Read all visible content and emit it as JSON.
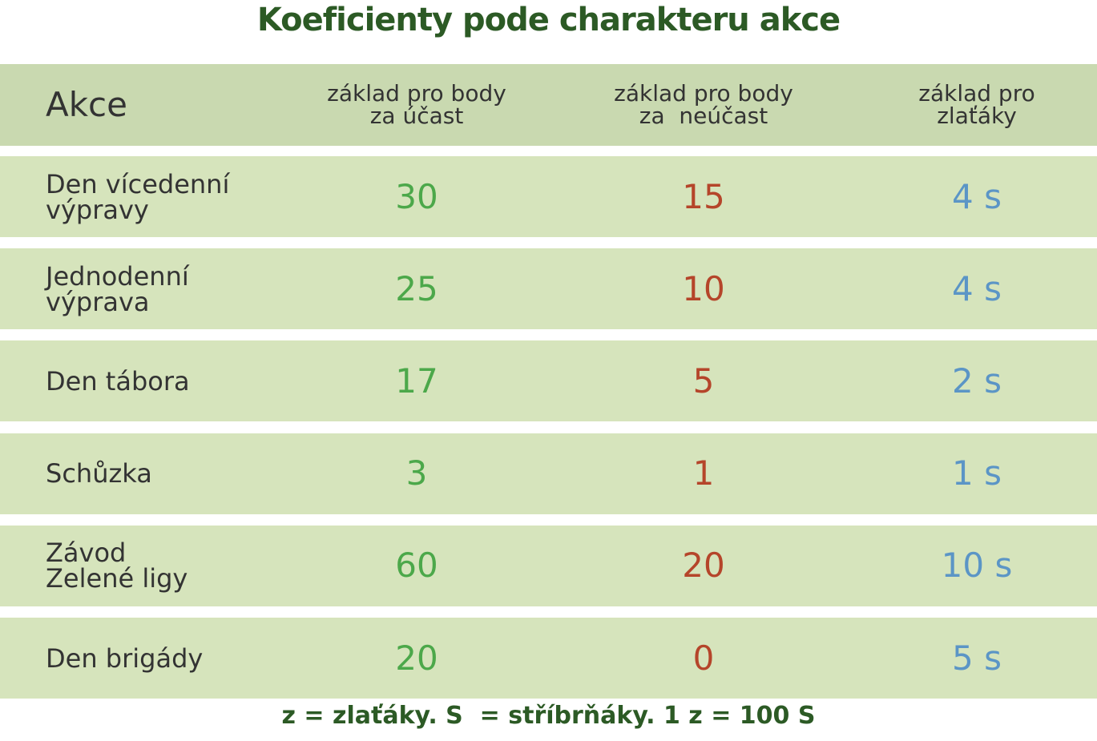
{
  "title": "Koeficienty pode charakteru akce",
  "table": {
    "header": [
      [
        "Akce"
      ],
      [
        "základ pro body",
        "za účast"
      ],
      [
        "základ pro body",
        "za  neúčast"
      ],
      [
        "základ pro",
        "zlaťáky"
      ]
    ],
    "rows": [
      [
        [
          "Den vícedenní",
          "výpravy"
        ],
        30,
        15,
        "4 s"
      ],
      [
        [
          "Jednodenní",
          "výprava"
        ],
        25,
        10,
        "4 s"
      ],
      [
        [
          "Den tábora"
        ],
        17,
        5,
        "2 s"
      ],
      [
        [
          "Schůzka"
        ],
        3,
        1,
        "1 s"
      ],
      [
        [
          "Závod",
          "Zelené ligy"
        ],
        60,
        20,
        "10 s"
      ],
      [
        [
          "Den brigády"
        ],
        20,
        0,
        "5 s"
      ]
    ]
  },
  "footer": "z = zlaťáky. S  = stříbrňáky. 1 z = 100 S"
}
